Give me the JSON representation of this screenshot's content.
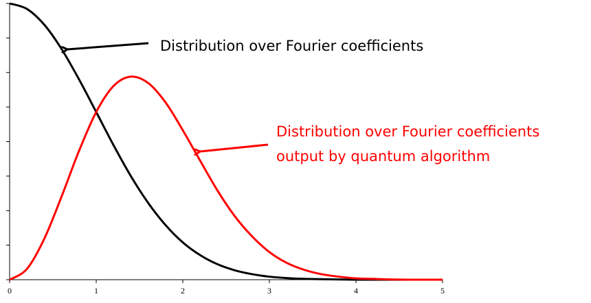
{
  "chart_data": {
    "type": "line",
    "x": [
      0,
      0.2,
      0.4,
      0.6,
      0.8,
      1,
      1.2,
      1.4,
      1.6,
      1.8,
      2,
      2.2,
      2.4,
      2.6,
      2.8,
      3,
      3.2,
      3.4,
      3.6,
      3.8,
      4,
      4.2,
      4.4,
      4.6,
      4.8,
      5
    ],
    "series": [
      {
        "name": "Distribution over Fourier coefficients",
        "color": "#000000",
        "values": [
          1,
          0.98,
          0.923,
          0.835,
          0.726,
          0.607,
          0.487,
          0.375,
          0.278,
          0.198,
          0.135,
          0.089,
          0.056,
          0.034,
          0.02,
          0.011,
          0.006,
          0.003,
          0.002,
          0.001,
          0,
          0,
          0,
          0,
          0,
          0
        ]
      },
      {
        "name": "Distribution over Fourier coefficients output by quantum algorithm",
        "color": "#ff0000",
        "values": [
          0,
          0.039,
          0.148,
          0.301,
          0.465,
          0.607,
          0.701,
          0.735,
          0.712,
          0.642,
          0.541,
          0.431,
          0.323,
          0.23,
          0.157,
          0.1,
          0.061,
          0.036,
          0.02,
          0.011,
          0.005,
          0.003,
          0.001,
          0,
          0,
          0
        ]
      }
    ],
    "annotations": [
      {
        "lines": [
          "Distribution over Fourier coefficients"
        ],
        "color": "#000000"
      },
      {
        "lines": [
          "Distribution over Fourier coefficients",
          "output by quantum algorithm"
        ],
        "color": "#ff0000"
      }
    ],
    "xlim": [
      0,
      5
    ],
    "xticks": [
      0,
      1,
      2,
      3,
      4,
      5
    ],
    "ylim": [
      0,
      1
    ],
    "yticks": [
      0,
      0.125,
      0.25,
      0.375,
      0.5,
      0.625,
      0.75,
      0.875,
      1
    ],
    "grid": false
  }
}
